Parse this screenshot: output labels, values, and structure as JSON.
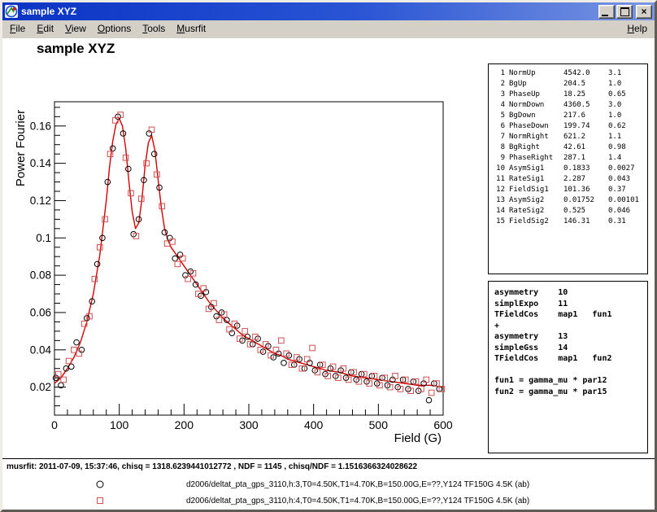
{
  "window": {
    "title": "sample XYZ",
    "colors": {
      "titlebar_dark": "#0a33c4",
      "titlebar_light": "#7a96e2",
      "chrome": "#d4d0c8",
      "fit_line_red": "#d40000",
      "series2_red": "#d05050",
      "series1_black": "#000000"
    }
  },
  "menu": {
    "items": [
      "File",
      "Edit",
      "View",
      "Options",
      "Tools",
      "Musrfit"
    ],
    "right_items": [
      "Help"
    ]
  },
  "canvas": {
    "title": "sample XYZ"
  },
  "chart_data": {
    "type": "scatter",
    "title": "sample XYZ",
    "xlabel": "Field (G)",
    "ylabel": "Power Fourier",
    "xlim": [
      0,
      600
    ],
    "ylim": [
      0.005,
      0.173
    ],
    "xticks": [
      0,
      100,
      200,
      300,
      400,
      500,
      600
    ],
    "yticks": [
      0.02,
      0.04,
      0.06,
      0.08,
      0.1,
      0.12,
      0.14,
      0.16
    ],
    "x_minor_step": 20,
    "y_minor_step": 0.005,
    "grid": false,
    "legend_position": "bottom-outside",
    "fit_line": {
      "name": "musrfit fourier fit",
      "color": "#d40000",
      "points": [
        [
          0,
          0.022
        ],
        [
          10,
          0.025
        ],
        [
          20,
          0.03
        ],
        [
          30,
          0.036
        ],
        [
          40,
          0.044
        ],
        [
          50,
          0.055
        ],
        [
          60,
          0.07
        ],
        [
          70,
          0.091
        ],
        [
          80,
          0.12
        ],
        [
          85,
          0.138
        ],
        [
          90,
          0.152
        ],
        [
          95,
          0.161
        ],
        [
          100,
          0.164
        ],
        [
          105,
          0.16
        ],
        [
          110,
          0.148
        ],
        [
          115,
          0.13
        ],
        [
          120,
          0.114
        ],
        [
          125,
          0.105
        ],
        [
          130,
          0.108
        ],
        [
          135,
          0.121
        ],
        [
          140,
          0.139
        ],
        [
          145,
          0.151
        ],
        [
          150,
          0.155
        ],
        [
          155,
          0.147
        ],
        [
          160,
          0.131
        ],
        [
          165,
          0.116
        ],
        [
          170,
          0.105
        ],
        [
          175,
          0.099
        ],
        [
          180,
          0.095
        ],
        [
          190,
          0.09
        ],
        [
          200,
          0.085
        ],
        [
          210,
          0.08
        ],
        [
          220,
          0.075
        ],
        [
          230,
          0.07
        ],
        [
          240,
          0.065
        ],
        [
          250,
          0.061
        ],
        [
          260,
          0.057
        ],
        [
          270,
          0.054
        ],
        [
          280,
          0.051
        ],
        [
          290,
          0.048
        ],
        [
          300,
          0.046
        ],
        [
          310,
          0.044
        ],
        [
          320,
          0.042
        ],
        [
          330,
          0.04
        ],
        [
          340,
          0.038
        ],
        [
          350,
          0.037
        ],
        [
          360,
          0.035
        ],
        [
          370,
          0.034
        ],
        [
          380,
          0.033
        ],
        [
          390,
          0.032
        ],
        [
          400,
          0.031
        ],
        [
          420,
          0.029
        ],
        [
          440,
          0.028
        ],
        [
          460,
          0.026
        ],
        [
          480,
          0.025
        ],
        [
          500,
          0.024
        ],
        [
          520,
          0.023
        ],
        [
          540,
          0.022
        ],
        [
          560,
          0.021
        ],
        [
          580,
          0.021
        ],
        [
          600,
          0.02
        ]
      ]
    },
    "series": [
      {
        "name": "d2006/deltat_pta_gps_3110,h:3,T0=4.50K,T1=4.70K,B=150.00G,E=??,Y124 TF150G 4.5K (ab)",
        "marker": "circle",
        "color": "#000000",
        "points": [
          [
            2,
            0.025
          ],
          [
            10,
            0.021
          ],
          [
            18,
            0.03
          ],
          [
            26,
            0.031
          ],
          [
            34,
            0.044
          ],
          [
            42,
            0.04
          ],
          [
            50,
            0.057
          ],
          [
            58,
            0.066
          ],
          [
            66,
            0.086
          ],
          [
            74,
            0.1
          ],
          [
            82,
            0.13
          ],
          [
            90,
            0.148
          ],
          [
            98,
            0.165
          ],
          [
            106,
            0.156
          ],
          [
            114,
            0.137
          ],
          [
            122,
            0.102
          ],
          [
            130,
            0.11
          ],
          [
            138,
            0.131
          ],
          [
            146,
            0.156
          ],
          [
            154,
            0.145
          ],
          [
            162,
            0.127
          ],
          [
            170,
            0.103
          ],
          [
            178,
            0.1
          ],
          [
            186,
            0.089
          ],
          [
            194,
            0.091
          ],
          [
            202,
            0.08
          ],
          [
            210,
            0.082
          ],
          [
            218,
            0.075
          ],
          [
            226,
            0.069
          ],
          [
            234,
            0.071
          ],
          [
            242,
            0.063
          ],
          [
            250,
            0.058
          ],
          [
            258,
            0.06
          ],
          [
            266,
            0.056
          ],
          [
            274,
            0.049
          ],
          [
            282,
            0.053
          ],
          [
            290,
            0.045
          ],
          [
            298,
            0.047
          ],
          [
            306,
            0.043
          ],
          [
            314,
            0.046
          ],
          [
            322,
            0.039
          ],
          [
            330,
            0.042
          ],
          [
            338,
            0.036
          ],
          [
            346,
            0.038
          ],
          [
            354,
            0.033
          ],
          [
            362,
            0.037
          ],
          [
            370,
            0.032
          ],
          [
            378,
            0.035
          ],
          [
            386,
            0.03
          ],
          [
            394,
            0.033
          ],
          [
            402,
            0.029
          ],
          [
            410,
            0.032
          ],
          [
            418,
            0.027
          ],
          [
            426,
            0.03
          ],
          [
            434,
            0.026
          ],
          [
            442,
            0.029
          ],
          [
            450,
            0.025
          ],
          [
            458,
            0.028
          ],
          [
            466,
            0.024
          ],
          [
            474,
            0.027
          ],
          [
            482,
            0.023
          ],
          [
            490,
            0.026
          ],
          [
            498,
            0.022
          ],
          [
            506,
            0.025
          ],
          [
            514,
            0.021
          ],
          [
            522,
            0.024
          ],
          [
            530,
            0.02
          ],
          [
            538,
            0.024
          ],
          [
            546,
            0.019
          ],
          [
            554,
            0.023
          ],
          [
            562,
            0.018
          ],
          [
            570,
            0.022
          ],
          [
            578,
            0.013
          ],
          [
            586,
            0.022
          ],
          [
            594,
            0.019
          ]
        ]
      },
      {
        "name": "d2006/deltat_pta_gps_3110,h:4,T0=4.50K,T1=4.70K,B=150.00G,E=??,Y124 TF150G 4.5K (ab)",
        "marker": "square",
        "color": "#d05050",
        "points": [
          [
            6,
            0.027
          ],
          [
            14,
            0.024
          ],
          [
            22,
            0.034
          ],
          [
            30,
            0.04
          ],
          [
            38,
            0.038
          ],
          [
            46,
            0.054
          ],
          [
            54,
            0.058
          ],
          [
            62,
            0.078
          ],
          [
            70,
            0.095
          ],
          [
            78,
            0.11
          ],
          [
            86,
            0.145
          ],
          [
            94,
            0.163
          ],
          [
            102,
            0.166
          ],
          [
            110,
            0.143
          ],
          [
            118,
            0.124
          ],
          [
            126,
            0.101
          ],
          [
            134,
            0.121
          ],
          [
            142,
            0.14
          ],
          [
            150,
            0.158
          ],
          [
            158,
            0.134
          ],
          [
            166,
            0.117
          ],
          [
            174,
            0.097
          ],
          [
            182,
            0.098
          ],
          [
            190,
            0.086
          ],
          [
            198,
            0.089
          ],
          [
            206,
            0.078
          ],
          [
            214,
            0.081
          ],
          [
            222,
            0.07
          ],
          [
            230,
            0.073
          ],
          [
            238,
            0.062
          ],
          [
            246,
            0.065
          ],
          [
            254,
            0.056
          ],
          [
            262,
            0.059
          ],
          [
            270,
            0.051
          ],
          [
            278,
            0.054
          ],
          [
            286,
            0.046
          ],
          [
            294,
            0.05
          ],
          [
            302,
            0.043
          ],
          [
            310,
            0.047
          ],
          [
            318,
            0.04
          ],
          [
            326,
            0.043
          ],
          [
            334,
            0.037
          ],
          [
            342,
            0.04
          ],
          [
            350,
            0.045
          ],
          [
            358,
            0.038
          ],
          [
            366,
            0.032
          ],
          [
            374,
            0.036
          ],
          [
            382,
            0.03
          ],
          [
            390,
            0.035
          ],
          [
            398,
            0.041
          ],
          [
            406,
            0.028
          ],
          [
            414,
            0.032
          ],
          [
            422,
            0.026
          ],
          [
            430,
            0.031
          ],
          [
            438,
            0.025
          ],
          [
            446,
            0.03
          ],
          [
            454,
            0.024
          ],
          [
            462,
            0.028
          ],
          [
            470,
            0.023
          ],
          [
            478,
            0.027
          ],
          [
            486,
            0.022
          ],
          [
            494,
            0.026
          ],
          [
            502,
            0.021
          ],
          [
            510,
            0.025
          ],
          [
            518,
            0.02
          ],
          [
            526,
            0.026
          ],
          [
            534,
            0.019
          ],
          [
            542,
            0.024
          ],
          [
            550,
            0.018
          ],
          [
            558,
            0.023
          ],
          [
            566,
            0.019
          ],
          [
            574,
            0.024
          ],
          [
            582,
            0.017
          ],
          [
            590,
            0.022
          ],
          [
            598,
            0.019
          ]
        ]
      }
    ]
  },
  "parameters": {
    "rows": [
      {
        "num": "1",
        "name": "NormUp",
        "value": "4542.0",
        "error": "3.1"
      },
      {
        "num": "2",
        "name": "BgUp",
        "value": "204.5",
        "error": "1.0"
      },
      {
        "num": "3",
        "name": "PhaseUp",
        "value": "18.25",
        "error": "0.65"
      },
      {
        "num": "4",
        "name": "NormDown",
        "value": "4360.5",
        "error": "3.0"
      },
      {
        "num": "5",
        "name": "BgDown",
        "value": "217.6",
        "error": "1.0"
      },
      {
        "num": "6",
        "name": "PhaseDown",
        "value": "199.74",
        "error": "0.62"
      },
      {
        "num": "7",
        "name": "NormRight",
        "value": "621.2",
        "error": "1.1"
      },
      {
        "num": "8",
        "name": "BgRight",
        "value": "42.61",
        "error": "0.98"
      },
      {
        "num": "9",
        "name": "PhaseRight",
        "value": "287.1",
        "error": "1.4"
      },
      {
        "num": "10",
        "name": "AsymSig1",
        "value": "0.1833",
        "error": "0.0027"
      },
      {
        "num": "11",
        "name": "RateSig1",
        "value": "2.287",
        "error": "0.043"
      },
      {
        "num": "12",
        "name": "FieldSig1",
        "value": "101.36",
        "error": "0.37"
      },
      {
        "num": "13",
        "name": "AsymSig2",
        "value": "0.01752",
        "error": "0.00101"
      },
      {
        "num": "14",
        "name": "RateSig2",
        "value": "0.525",
        "error": "0.046"
      },
      {
        "num": "15",
        "name": "FieldSig2",
        "value": "146.31",
        "error": "0.31"
      }
    ]
  },
  "theory": {
    "lines": [
      "asymmetry    10",
      "simplExpo    11",
      "TFieldCos    map1   fun1",
      "+",
      "asymmetry    13",
      "simpleGss    14",
      "TFieldCos    map1   fun2",
      "",
      "fun1 = gamma_mu * par12",
      "fun2 = gamma_mu * par15"
    ]
  },
  "status": {
    "fit_info": "musrfit: 2011-07-09, 15:37:46, chisq = 1318.6239441012772 , NDF = 1145 , chisq/NDF = 1.1516366324028622"
  },
  "legend": {
    "entries": [
      {
        "marker": "circle",
        "color": "#000000",
        "label": "d2006/deltat_pta_gps_3110,h:3,T0=4.50K,T1=4.70K,B=150.00G,E=??,Y124 TF150G 4.5K (ab)"
      },
      {
        "marker": "square",
        "color": "#d05050",
        "label": "d2006/deltat_pta_gps_3110,h:4,T0=4.50K,T1=4.70K,B=150.00G,E=??,Y124 TF150G 4.5K (ab)"
      }
    ]
  }
}
